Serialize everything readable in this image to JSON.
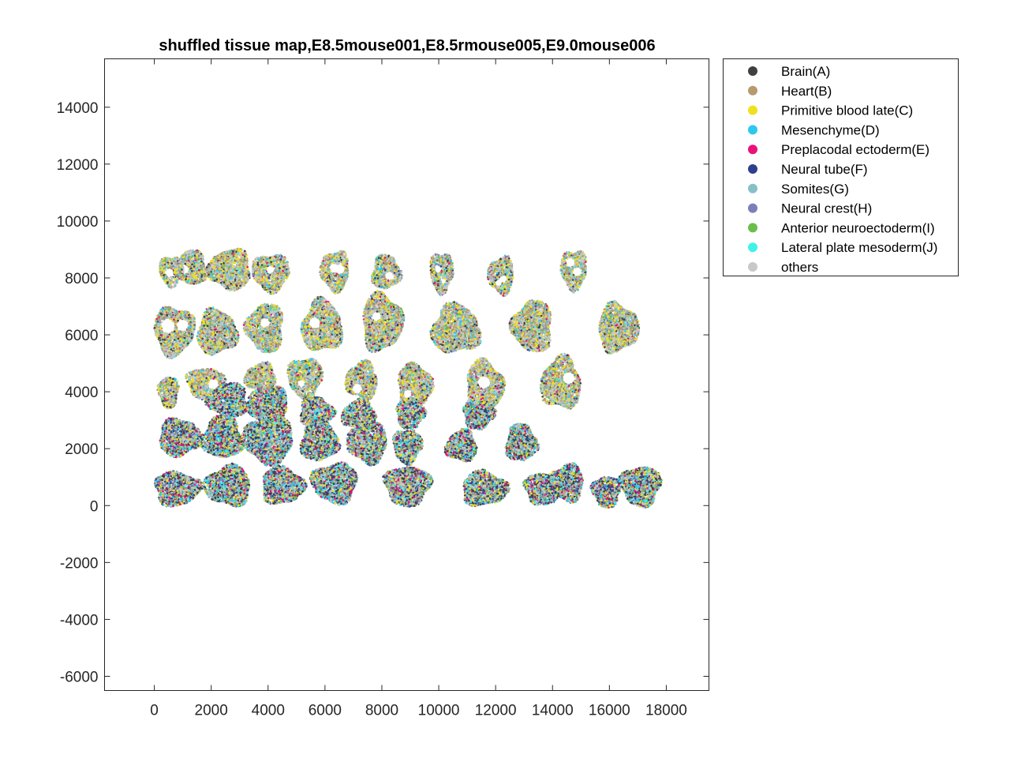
{
  "chart_data": {
    "type": "scatter",
    "title": "shuffled tissue map,E8.5mouse001,E8.5rmouse005,E9.0mouse006",
    "xlabel": "",
    "ylabel": "",
    "xlim": [
      -1750,
      19500
    ],
    "ylim": [
      -6500,
      15700
    ],
    "xticks": [
      0,
      2000,
      4000,
      6000,
      8000,
      10000,
      12000,
      14000,
      16000,
      18000
    ],
    "yticks": [
      -6000,
      -4000,
      -2000,
      0,
      2000,
      4000,
      6000,
      8000,
      10000,
      12000,
      14000
    ],
    "grid": false,
    "legend_position": "outside-right-top",
    "series": [
      {
        "name": "Brain(A)",
        "color": "#404040"
      },
      {
        "name": "Heart(B)",
        "color": "#B89A6E"
      },
      {
        "name": "Primitive blood late(C)",
        "color": "#F0E11E"
      },
      {
        "name": "Mesenchyme(D)",
        "color": "#2CC8EE"
      },
      {
        "name": "Preplacodal ectoderm(E)",
        "color": "#E8127A"
      },
      {
        "name": "Neural tube(F)",
        "color": "#2E3F8C"
      },
      {
        "name": "Somites(G)",
        "color": "#87BFC8"
      },
      {
        "name": "Neural crest(H)",
        "color": "#7B7FB8"
      },
      {
        "name": "Anterior neuroectoderm(I)",
        "color": "#6BBE4A"
      },
      {
        "name": "Lateral plate mesoderm(J)",
        "color": "#40F2E8"
      },
      {
        "name": "others",
        "color": "#C8C8C8"
      }
    ],
    "clusters": [
      {
        "x": 600,
        "y": 8250,
        "rx": 420,
        "ry": 520,
        "holes": true,
        "style": "light"
      },
      {
        "x": 1300,
        "y": 8350,
        "rx": 550,
        "ry": 600,
        "holes": true,
        "style": "light"
      },
      {
        "x": 2650,
        "y": 8300,
        "rx": 750,
        "ry": 700,
        "holes": false,
        "style": "light"
      },
      {
        "x": 4100,
        "y": 8200,
        "rx": 650,
        "ry": 650,
        "holes": true,
        "style": "light"
      },
      {
        "x": 6350,
        "y": 8250,
        "rx": 500,
        "ry": 700,
        "holes": true,
        "style": "light"
      },
      {
        "x": 8150,
        "y": 8200,
        "rx": 500,
        "ry": 600,
        "holes": true,
        "style": "light"
      },
      {
        "x": 10100,
        "y": 8200,
        "rx": 400,
        "ry": 700,
        "holes": true,
        "style": "light"
      },
      {
        "x": 12200,
        "y": 8100,
        "rx": 450,
        "ry": 650,
        "holes": true,
        "style": "light"
      },
      {
        "x": 14750,
        "y": 8300,
        "rx": 450,
        "ry": 700,
        "holes": true,
        "style": "light"
      },
      {
        "x": 700,
        "y": 6150,
        "rx": 700,
        "ry": 850,
        "holes": true,
        "style": "light"
      },
      {
        "x": 2200,
        "y": 6100,
        "rx": 700,
        "ry": 780,
        "holes": false,
        "style": "light"
      },
      {
        "x": 3900,
        "y": 6250,
        "rx": 650,
        "ry": 850,
        "holes": true,
        "style": "light"
      },
      {
        "x": 5900,
        "y": 6300,
        "rx": 700,
        "ry": 900,
        "holes": true,
        "style": "light"
      },
      {
        "x": 8000,
        "y": 6450,
        "rx": 700,
        "ry": 1000,
        "holes": true,
        "style": "light"
      },
      {
        "x": 10600,
        "y": 6200,
        "rx": 850,
        "ry": 850,
        "holes": false,
        "style": "light"
      },
      {
        "x": 13300,
        "y": 6300,
        "rx": 700,
        "ry": 900,
        "holes": false,
        "style": "light"
      },
      {
        "x": 16300,
        "y": 6250,
        "rx": 700,
        "ry": 850,
        "holes": false,
        "style": "light"
      },
      {
        "x": 500,
        "y": 4000,
        "rx": 350,
        "ry": 550,
        "holes": false,
        "style": "light"
      },
      {
        "x": 1800,
        "y": 4300,
        "rx": 650,
        "ry": 550,
        "holes": true,
        "style": "light"
      },
      {
        "x": 3750,
        "y": 4500,
        "rx": 550,
        "ry": 500,
        "holes": false,
        "style": "light"
      },
      {
        "x": 5300,
        "y": 4500,
        "rx": 600,
        "ry": 700,
        "holes": true,
        "style": "light"
      },
      {
        "x": 7300,
        "y": 4400,
        "rx": 550,
        "ry": 650,
        "holes": true,
        "style": "light"
      },
      {
        "x": 9150,
        "y": 4200,
        "rx": 600,
        "ry": 800,
        "holes": true,
        "style": "light"
      },
      {
        "x": 11600,
        "y": 4200,
        "rx": 650,
        "ry": 900,
        "holes": true,
        "style": "light"
      },
      {
        "x": 14300,
        "y": 4300,
        "rx": 700,
        "ry": 900,
        "holes": true,
        "style": "light"
      },
      {
        "x": 2600,
        "y": 3700,
        "rx": 700,
        "ry": 600,
        "holes": false,
        "style": "dark"
      },
      {
        "x": 4000,
        "y": 3500,
        "rx": 700,
        "ry": 700,
        "holes": false,
        "style": "dark"
      },
      {
        "x": 5700,
        "y": 3300,
        "rx": 600,
        "ry": 500,
        "holes": false,
        "style": "dark"
      },
      {
        "x": 7200,
        "y": 3200,
        "rx": 600,
        "ry": 500,
        "holes": false,
        "style": "dark"
      },
      {
        "x": 9000,
        "y": 3200,
        "rx": 500,
        "ry": 500,
        "holes": false,
        "style": "dark"
      },
      {
        "x": 11400,
        "y": 3200,
        "rx": 550,
        "ry": 500,
        "holes": false,
        "style": "dark"
      },
      {
        "x": 900,
        "y": 2400,
        "rx": 750,
        "ry": 650,
        "holes": false,
        "style": "dark"
      },
      {
        "x": 2400,
        "y": 2400,
        "rx": 700,
        "ry": 750,
        "holes": false,
        "style": "dark"
      },
      {
        "x": 4000,
        "y": 2300,
        "rx": 900,
        "ry": 800,
        "holes": false,
        "style": "dark"
      },
      {
        "x": 5800,
        "y": 2300,
        "rx": 650,
        "ry": 750,
        "holes": false,
        "style": "dark"
      },
      {
        "x": 7500,
        "y": 2200,
        "rx": 700,
        "ry": 700,
        "holes": false,
        "style": "dark"
      },
      {
        "x": 8900,
        "y": 2100,
        "rx": 500,
        "ry": 600,
        "holes": false,
        "style": "dark"
      },
      {
        "x": 10800,
        "y": 2100,
        "rx": 550,
        "ry": 550,
        "holes": false,
        "style": "dark"
      },
      {
        "x": 12900,
        "y": 2200,
        "rx": 550,
        "ry": 650,
        "holes": false,
        "style": "dark"
      },
      {
        "x": 800,
        "y": 600,
        "rx": 800,
        "ry": 600,
        "holes": false,
        "style": "dark"
      },
      {
        "x": 2600,
        "y": 700,
        "rx": 800,
        "ry": 700,
        "holes": false,
        "style": "dark"
      },
      {
        "x": 4500,
        "y": 700,
        "rx": 750,
        "ry": 650,
        "holes": false,
        "style": "dark"
      },
      {
        "x": 6350,
        "y": 800,
        "rx": 800,
        "ry": 700,
        "holes": false,
        "style": "dark"
      },
      {
        "x": 8900,
        "y": 700,
        "rx": 800,
        "ry": 700,
        "holes": false,
        "style": "dark"
      },
      {
        "x": 11600,
        "y": 600,
        "rx": 800,
        "ry": 600,
        "holes": false,
        "style": "dark"
      },
      {
        "x": 13700,
        "y": 600,
        "rx": 700,
        "ry": 550,
        "holes": false,
        "style": "dark"
      },
      {
        "x": 14500,
        "y": 800,
        "rx": 600,
        "ry": 650,
        "holes": false,
        "style": "dark"
      },
      {
        "x": 15900,
        "y": 500,
        "rx": 500,
        "ry": 550,
        "holes": false,
        "style": "dark"
      },
      {
        "x": 17100,
        "y": 700,
        "rx": 700,
        "ry": 700,
        "holes": false,
        "style": "dark"
      }
    ]
  }
}
